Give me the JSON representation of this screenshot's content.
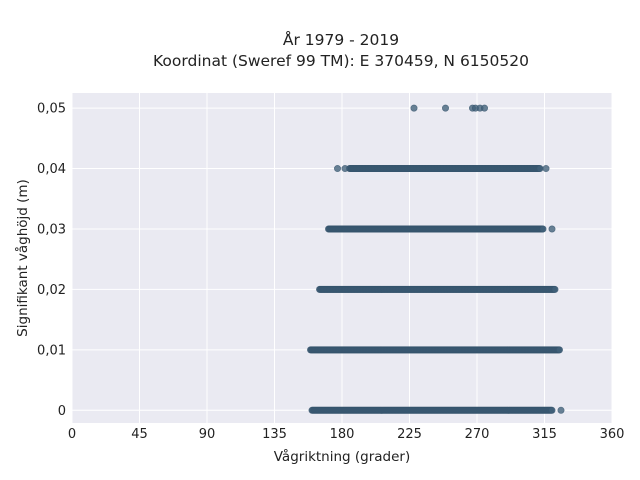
{
  "chart_data": {
    "type": "scatter",
    "title_lines": [
      "År 1979 - 2019",
      "Koordinat (Sweref 99 TM): E 370459, N 6150520"
    ],
    "xlabel": "Vågriktning (grader)",
    "ylabel": "Signifikant våghöjd (m)",
    "xlim": [
      0,
      360
    ],
    "ylim": [
      -0.0021,
      0.0525
    ],
    "xticks": [
      0,
      45,
      90,
      135,
      180,
      225,
      270,
      315,
      360
    ],
    "xtick_labels": [
      "0",
      "45",
      "90",
      "135",
      "180",
      "225",
      "270",
      "315",
      "360"
    ],
    "yticks": [
      0,
      0.01,
      0.02,
      0.03,
      0.04,
      0.05
    ],
    "ytick_labels": [
      "0",
      "0,01",
      "0,02",
      "0,03",
      "0,04",
      "0,05"
    ],
    "grid": true,
    "background": "#eaeaf2",
    "grid_color": "#ffffff",
    "point_color": "#3f5f79",
    "bands": [
      {
        "y": 0.0,
        "x_min": 160,
        "x_max": 320,
        "outliers": [
          326
        ]
      },
      {
        "y": 0.01,
        "x_min": 159,
        "x_max": 325,
        "outliers": []
      },
      {
        "y": 0.02,
        "x_min": 165,
        "x_max": 322,
        "outliers": []
      },
      {
        "y": 0.03,
        "x_min": 171,
        "x_max": 314,
        "outliers": [
          320
        ]
      },
      {
        "y": 0.04,
        "x_min": 185,
        "x_max": 312,
        "outliers": [
          177,
          182,
          316
        ]
      }
    ],
    "points": [
      {
        "x": 228,
        "y": 0.05
      },
      {
        "x": 249,
        "y": 0.05
      },
      {
        "x": 267,
        "y": 0.05
      },
      {
        "x": 269,
        "y": 0.05
      },
      {
        "x": 272,
        "y": 0.05
      },
      {
        "x": 275,
        "y": 0.05
      }
    ]
  }
}
